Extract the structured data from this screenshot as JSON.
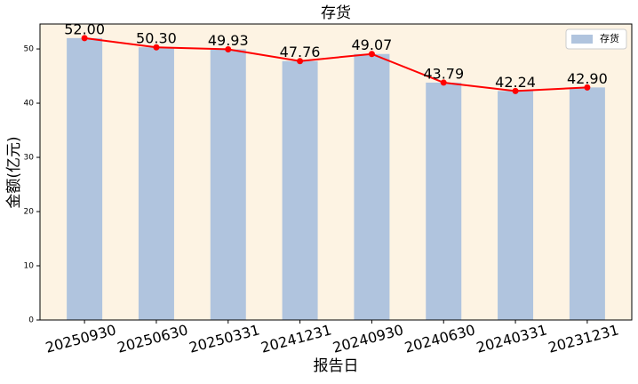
{
  "chart_data": {
    "type": "bar",
    "title": "存货",
    "x_label": "报告日",
    "y_label": "金额(亿元)",
    "categories": [
      "20250930",
      "20250630",
      "20250331",
      "20241231",
      "20240930",
      "20240630",
      "20240331",
      "20231231"
    ],
    "series": [
      {
        "name": "存货",
        "color": "#b0c4de",
        "line_color": "#ff0000",
        "values": [
          52.0,
          50.3,
          49.93,
          47.76,
          49.07,
          43.79,
          42.24,
          42.9
        ],
        "value_labels": [
          "52.00",
          "50.30",
          "49.93",
          "47.76",
          "49.07",
          "43.79",
          "42.24",
          "42.90"
        ]
      }
    ],
    "ylim": [
      0,
      54.6
    ],
    "yticks": [
      0,
      10,
      20,
      30,
      40,
      50
    ],
    "legend": "upper right",
    "background": "#fdf3e3"
  }
}
